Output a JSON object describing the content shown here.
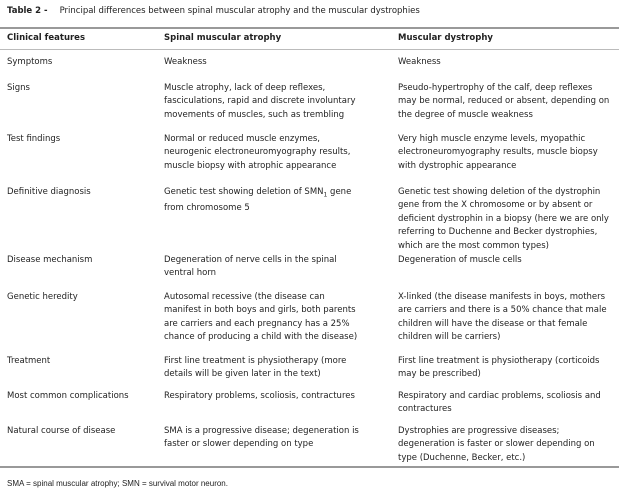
{
  "title": {
    "label": "Table 2 -",
    "text": "Principal differences between spinal muscular atrophy and the muscular dystrophies"
  },
  "headers": [
    "Clinical features",
    "Spinal muscular atrophy",
    "Muscular dystrophy"
  ],
  "rows": [
    {
      "feature": "Symptoms",
      "sma": "Weakness",
      "md": "Weakness"
    },
    {
      "feature": "Signs",
      "sma": "Muscle atrophy, lack of deep reflexes,\nfasciculations, rapid and discrete involuntary\nmovements of muscles, such as trembling",
      "md": "Pseudo-hypertrophy of the calf, deep reflexes\nmay be normal, reduced or absent, depending on\nthe degree of muscle weakness"
    },
    {
      "feature": "Test findings",
      "sma": "Normal or reduced muscle enzymes,\nneurogenic electroneuromyography results,\nmuscle biopsy with atrophic appearance",
      "md": "Very high muscle enzyme levels, myopathic\nelectroneuromyography results, muscle biopsy\nwith dystrophic appearance"
    },
    {
      "feature": "Definitive diagnosis",
      "sma_pre": "Genetic test showing deletion of SMN",
      "sma_sub": "1",
      "sma_post": " gene\nfrom chromosome 5",
      "md": "Genetic test showing deletion of the dystrophin\ngene from the X chromosome or by absent or\ndeficient dystrophin in a biopsy (here we are only\nreferring to Duchenne and Becker dystrophies,\nwhich are the most common types)"
    },
    {
      "feature": "Disease mechanism",
      "sma": "Degeneration of nerve cells in the spinal\nventral horn",
      "md": "Degeneration of muscle cells"
    },
    {
      "feature": "Genetic heredity",
      "sma": "Autosomal recessive (the disease can\nmanifest in both boys and girls, both parents\nare carriers and each pregnancy has a 25%\nchance of producing a child with the disease)",
      "md": "X-linked (the disease manifests in boys, mothers\nare carriers and there is a 50% chance that male\nchildren will have the disease or that female\nchildren will be carriers)"
    },
    {
      "feature": "Treatment",
      "sma": "First line treatment is physiotherapy (more\ndetails will be given later in the text)",
      "md": "First line treatment is physiotherapy  (corticoids\nmay be prescribed)"
    },
    {
      "feature": "Most common complications",
      "sma": "Respiratory problems, scoliosis, contractures",
      "md": "Respiratory and cardiac problems, scoliosis and\ncontractures"
    },
    {
      "feature": "Natural course of disease",
      "sma": "SMA is a progressive disease; degeneration is\nfaster or slower depending on type",
      "md": "Dystrophies are progressive diseases;\ndegeneration is faster or slower depending on\ntype  (Duchenne, Becker, etc.)"
    }
  ],
  "footnote": "SMA = spinal muscular atrophy; SMN = survival motor neuron."
}
